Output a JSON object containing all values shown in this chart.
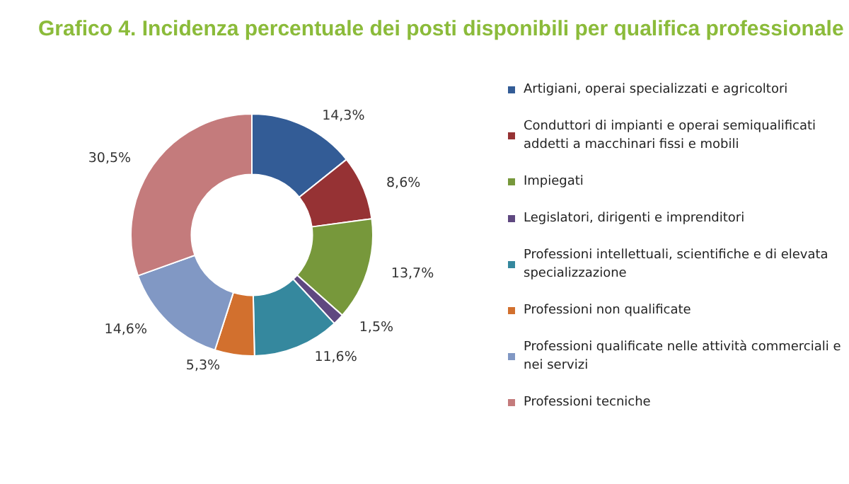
{
  "chart_data": {
    "type": "donut",
    "title": "Grafico 4. Incidenza percentuale dei posti disponibili per qualifica professionale",
    "categories": [
      "Artigiani, operai specializzati e agricoltori",
      "Conduttori di impianti e operai semiqualificati addetti a macchinari fissi e mobili",
      "Impiegati",
      "Legislatori, dirigenti e imprenditori",
      "Professioni intellettuali, scientifiche e di elevata specializzazione",
      "Professioni non qualificate",
      "Professioni qualificate nelle attività commerciali e nei servizi",
      "Professioni tecniche"
    ],
    "values": [
      14.3,
      8.6,
      13.7,
      1.5,
      11.6,
      5.3,
      14.6,
      30.5
    ],
    "value_labels": [
      "14,3%",
      "8,6%",
      "13,7%",
      "1,5%",
      "11,6%",
      "5,3%",
      "14,6%",
      "30,5%"
    ],
    "colors": [
      "#335c96",
      "#963234",
      "#77983b",
      "#5f4880",
      "#35889e",
      "#d2702e",
      "#8198c4",
      "#c47b7c"
    ],
    "legend": "right"
  }
}
